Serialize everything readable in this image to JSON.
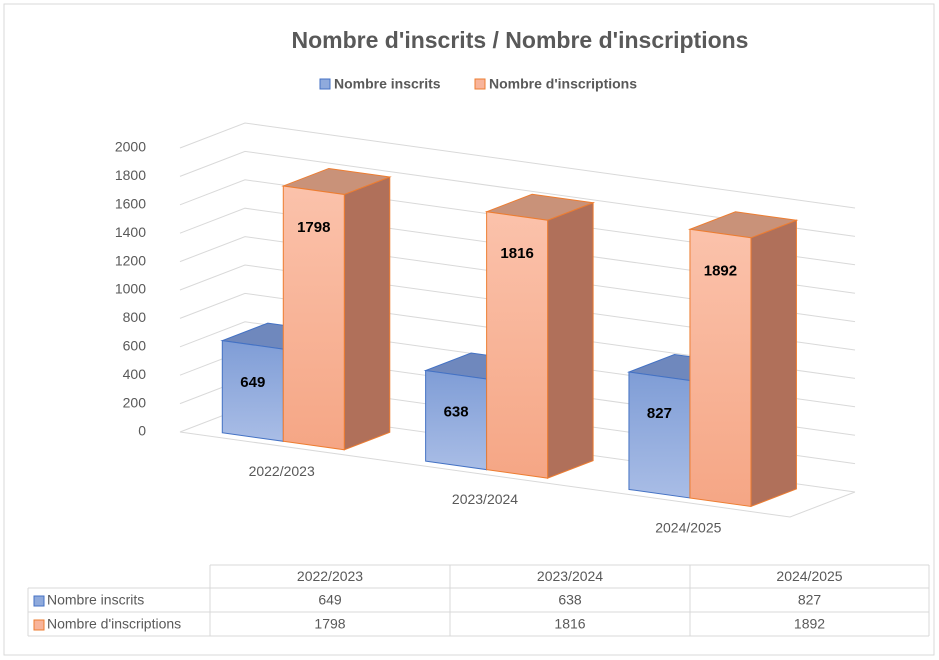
{
  "chart_data": {
    "type": "bar3d",
    "title": "Nombre d'inscrits / Nombre d'inscriptions",
    "categories": [
      "2022/2023",
      "2023/2024",
      "2024/2025"
    ],
    "series": [
      {
        "name": "Nombre inscrits",
        "color": "#8faadc",
        "values": [
          649,
          638,
          827
        ]
      },
      {
        "name": "Nombre d'inscriptions",
        "color": "#f8b49a",
        "values": [
          1798,
          1816,
          1892
        ]
      }
    ],
    "ylim": [
      0,
      2000
    ],
    "yticks": [
      0,
      200,
      400,
      600,
      800,
      1000,
      1200,
      1400,
      1600,
      1800,
      2000
    ],
    "grid": true,
    "legend": "top",
    "data_table": true
  }
}
